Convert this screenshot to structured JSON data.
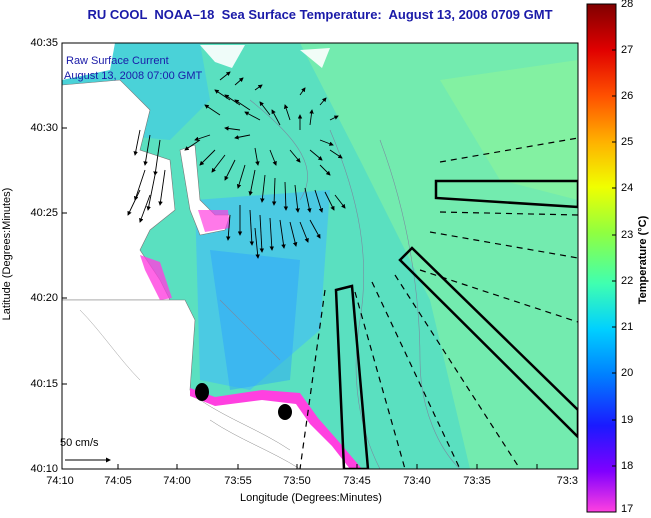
{
  "title": "RU COOL  NOAA–18  Sea Surface Temperature:  August 13, 2008 0709 GMT",
  "annotation": {
    "line1": "Raw Surface Current",
    "line2": "August 13, 2008 07:00 GMT"
  },
  "scale_label": "50 cm/s",
  "axes": {
    "xlabel": "Longitude (Degrees:Minutes)",
    "ylabel": "Latitude (Degrees:Minutes)",
    "xticks": [
      "74:10",
      "74:05",
      "74:00",
      "73:55",
      "73:50",
      "73:45",
      "73:40",
      "73:35",
      "73:3"
    ],
    "yticks": [
      "40:35",
      "40:30",
      "40:25",
      "40:20",
      "40:15",
      "40:10"
    ]
  },
  "colorbar": {
    "label": "Temperature (°C)",
    "ticks": [
      "28",
      "27",
      "26",
      "25",
      "24",
      "23",
      "22",
      "21",
      "20",
      "19",
      "18",
      "17"
    ]
  }
}
